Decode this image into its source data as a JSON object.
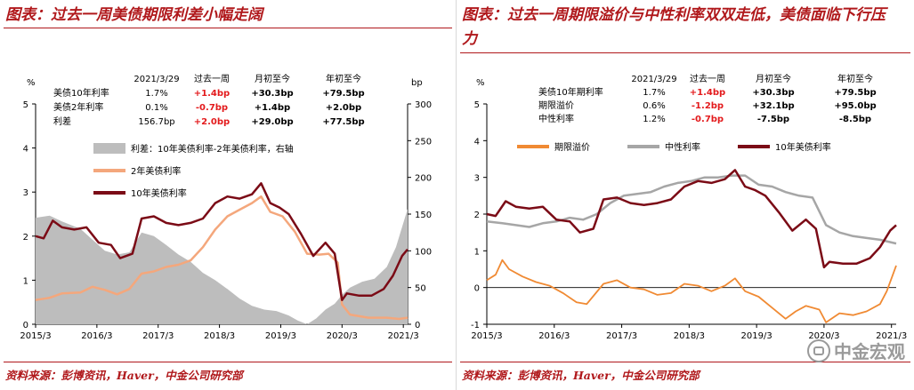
{
  "left": {
    "title": "图表：过去一周美债期限利差小幅走阔",
    "source": "资料来源：彭博资讯，Haver，中金公司研究部",
    "table": {
      "headers": [
        "2021/3/29",
        "过去一周",
        "月初至今",
        "年初至今"
      ],
      "rows": [
        {
          "label": "美债10年利率",
          "cells": [
            "1.7%",
            "+1.4bp",
            "+30.3bp",
            "+79.5bp"
          ],
          "week_color": "#e31a1c"
        },
        {
          "label": "美债2年利率",
          "cells": [
            "0.1%",
            "-0.7bp",
            "+1.4bp",
            "+2.0bp"
          ],
          "week_color": "#e31a1c"
        },
        {
          "label": "利差",
          "cells": [
            "156.7bp",
            "+2.0bp",
            "+29.0bp",
            "+77.5bp"
          ],
          "week_color": "#e31a1c"
        }
      ]
    }
  },
  "right": {
    "title": "图表：过去一周期限溢价与中性利率双双走低，美债面临下行压力",
    "source": "资料来源：彭博资讯，Haver，中金公司研究部",
    "watermark": "中金宏观",
    "table": {
      "headers": [
        "2021/3/29",
        "过去一周",
        "月初至今",
        "年初至今"
      ],
      "rows": [
        {
          "label": "美债10年期利率",
          "cells": [
            "1.7%",
            "+1.4bp",
            "+30.3bp",
            "+79.5bp"
          ],
          "week_color": "#e31a1c"
        },
        {
          "label": "期限溢价",
          "cells": [
            "0.6%",
            "-1.2bp",
            "+32.1bp",
            "+95.0bp"
          ],
          "week_color": "#e31a1c"
        },
        {
          "label": "中性利率",
          "cells": [
            "1.2%",
            "-0.7bp",
            "-7.5bp",
            "-8.5bp"
          ],
          "week_color": "#e31a1c"
        }
      ]
    }
  },
  "chart_data": [
    {
      "type": "line",
      "yunit_left": "%",
      "yunit_right": "bp",
      "ylim_left": [
        0,
        5
      ],
      "ylim_right": [
        0,
        300
      ],
      "yticks_left": [
        "0",
        "1",
        "2",
        "3",
        "4",
        "5"
      ],
      "yticks_right": [
        "0",
        "50",
        "100",
        "150",
        "200",
        "250",
        "300"
      ],
      "xlim": [
        2015.17,
        2021.24
      ],
      "xticks": [
        "2015/3",
        "2016/3",
        "2017/3",
        "2018/3",
        "2019/3",
        "2020/3",
        "2021/3"
      ],
      "xtick_values": [
        2015.17,
        2016.17,
        2017.17,
        2018.17,
        2019.17,
        2020.17,
        2021.17
      ],
      "series": [
        {
          "name": "利差：10年美债利率-2年美债利率，右轴",
          "type": "area",
          "axis": "right",
          "color": "#bdbdbd",
          "x": [
            2015.17,
            2015.4,
            2015.6,
            2015.9,
            2016.1,
            2016.3,
            2016.5,
            2016.7,
            2016.9,
            2017.1,
            2017.3,
            2017.5,
            2017.7,
            2017.9,
            2018.1,
            2018.3,
            2018.5,
            2018.7,
            2018.9,
            2019.1,
            2019.3,
            2019.45,
            2019.6,
            2019.75,
            2019.9,
            2020.05,
            2020.17,
            2020.3,
            2020.5,
            2020.7,
            2020.9,
            2021.05,
            2021.24
          ],
          "y": [
            145,
            148,
            140,
            130,
            115,
            100,
            95,
            98,
            125,
            120,
            108,
            95,
            85,
            70,
            60,
            48,
            35,
            25,
            20,
            18,
            12,
            5,
            -2,
            8,
            20,
            28,
            40,
            50,
            58,
            62,
            78,
            105,
            157
          ]
        },
        {
          "name": "2年美债利率",
          "type": "line",
          "axis": "left",
          "color": "#f4a77c",
          "width": 2.5,
          "x": [
            2015.17,
            2015.4,
            2015.6,
            2015.9,
            2016.1,
            2016.3,
            2016.5,
            2016.7,
            2016.9,
            2017.1,
            2017.3,
            2017.5,
            2017.7,
            2017.9,
            2018.1,
            2018.3,
            2018.5,
            2018.7,
            2018.85,
            2019.0,
            2019.2,
            2019.4,
            2019.6,
            2019.8,
            2019.95,
            2020.1,
            2020.17,
            2020.3,
            2020.6,
            2020.9,
            2021.1,
            2021.24
          ],
          "y": [
            0.55,
            0.6,
            0.7,
            0.72,
            0.85,
            0.78,
            0.68,
            0.8,
            1.15,
            1.2,
            1.3,
            1.35,
            1.45,
            1.75,
            2.15,
            2.45,
            2.6,
            2.75,
            2.9,
            2.55,
            2.45,
            2.1,
            1.6,
            1.58,
            1.6,
            1.4,
            0.45,
            0.22,
            0.15,
            0.15,
            0.12,
            0.15
          ]
        },
        {
          "name": "10年美债利率",
          "type": "line",
          "axis": "left",
          "color": "#7b0b16",
          "width": 2.5,
          "x": [
            2015.17,
            2015.3,
            2015.45,
            2015.6,
            2015.8,
            2016.0,
            2016.2,
            2016.4,
            2016.55,
            2016.75,
            2016.9,
            2017.1,
            2017.3,
            2017.5,
            2017.7,
            2017.9,
            2018.1,
            2018.3,
            2018.5,
            2018.7,
            2018.85,
            2019.0,
            2019.15,
            2019.3,
            2019.5,
            2019.7,
            2019.9,
            2020.05,
            2020.17,
            2020.25,
            2020.45,
            2020.65,
            2020.85,
            2021.0,
            2021.15,
            2021.24
          ],
          "y": [
            2.0,
            1.95,
            2.35,
            2.2,
            2.15,
            2.2,
            1.85,
            1.8,
            1.5,
            1.6,
            2.4,
            2.45,
            2.3,
            2.25,
            2.3,
            2.4,
            2.75,
            2.9,
            2.85,
            2.95,
            3.2,
            2.75,
            2.65,
            2.5,
            2.05,
            1.55,
            1.85,
            1.6,
            0.55,
            0.7,
            0.65,
            0.65,
            0.8,
            1.1,
            1.55,
            1.7
          ]
        }
      ]
    },
    {
      "type": "line",
      "yunit_left": "%",
      "ylim": [
        -1,
        5
      ],
      "yticks": [
        "-1",
        "0",
        "1",
        "2",
        "3",
        "4",
        "5"
      ],
      "xlim": [
        2015.17,
        2021.24
      ],
      "xticks": [
        "2015/3",
        "2016/3",
        "2017/3",
        "2018/3",
        "2019/3",
        "2020/3",
        "2021/3"
      ],
      "xtick_values": [
        2015.17,
        2016.17,
        2017.17,
        2018.17,
        2019.17,
        2020.17,
        2021.17
      ],
      "series": [
        {
          "name": "期限溢价",
          "type": "line",
          "color": "#f08a33",
          "width": 1.8,
          "x": [
            2015.17,
            2015.3,
            2015.4,
            2015.5,
            2015.7,
            2015.9,
            2016.1,
            2016.3,
            2016.5,
            2016.65,
            2016.9,
            2017.1,
            2017.3,
            2017.5,
            2017.7,
            2017.9,
            2018.1,
            2018.3,
            2018.5,
            2018.7,
            2018.85,
            2019.0,
            2019.2,
            2019.4,
            2019.6,
            2019.75,
            2019.9,
            2020.1,
            2020.2,
            2020.4,
            2020.6,
            2020.8,
            2021.0,
            2021.1,
            2021.24
          ],
          "y": [
            0.2,
            0.35,
            0.75,
            0.5,
            0.3,
            0.15,
            0.05,
            -0.15,
            -0.4,
            -0.45,
            0.1,
            0.2,
            0.0,
            -0.05,
            -0.2,
            -0.15,
            0.1,
            0.05,
            -0.1,
            0.05,
            0.25,
            -0.1,
            -0.25,
            -0.55,
            -0.85,
            -0.65,
            -0.5,
            -0.6,
            -0.95,
            -0.7,
            -0.75,
            -0.65,
            -0.45,
            -0.1,
            0.6
          ]
        },
        {
          "name": "中性利率",
          "type": "line",
          "color": "#a6a6a6",
          "width": 2.5,
          "x": [
            2015.17,
            2015.4,
            2015.6,
            2015.8,
            2016.0,
            2016.2,
            2016.4,
            2016.6,
            2016.8,
            2017.0,
            2017.2,
            2017.4,
            2017.6,
            2017.8,
            2018.0,
            2018.2,
            2018.4,
            2018.6,
            2018.8,
            2019.0,
            2019.2,
            2019.4,
            2019.6,
            2019.8,
            2020.0,
            2020.2,
            2020.4,
            2020.6,
            2020.8,
            2021.0,
            2021.24
          ],
          "y": [
            1.8,
            1.75,
            1.7,
            1.65,
            1.75,
            1.8,
            1.9,
            1.85,
            2.0,
            2.3,
            2.5,
            2.55,
            2.6,
            2.75,
            2.85,
            2.9,
            3.0,
            3.0,
            3.05,
            3.05,
            2.8,
            2.75,
            2.6,
            2.5,
            2.45,
            1.7,
            1.5,
            1.4,
            1.35,
            1.3,
            1.2
          ]
        },
        {
          "name": "10年美债利率",
          "type": "line",
          "color": "#7b0b16",
          "width": 2.5,
          "x": [
            2015.17,
            2015.3,
            2015.45,
            2015.6,
            2015.8,
            2016.0,
            2016.2,
            2016.4,
            2016.55,
            2016.75,
            2016.9,
            2017.1,
            2017.3,
            2017.5,
            2017.7,
            2017.9,
            2018.1,
            2018.3,
            2018.5,
            2018.7,
            2018.85,
            2019.0,
            2019.15,
            2019.3,
            2019.5,
            2019.7,
            2019.9,
            2020.05,
            2020.17,
            2020.25,
            2020.45,
            2020.65,
            2020.85,
            2021.0,
            2021.15,
            2021.24
          ],
          "y": [
            2.0,
            1.95,
            2.35,
            2.2,
            2.15,
            2.2,
            1.85,
            1.8,
            1.5,
            1.6,
            2.4,
            2.45,
            2.3,
            2.25,
            2.3,
            2.4,
            2.75,
            2.9,
            2.85,
            2.95,
            3.2,
            2.75,
            2.65,
            2.5,
            2.05,
            1.55,
            1.85,
            1.6,
            0.55,
            0.7,
            0.65,
            0.65,
            0.8,
            1.1,
            1.55,
            1.7
          ]
        }
      ]
    }
  ]
}
